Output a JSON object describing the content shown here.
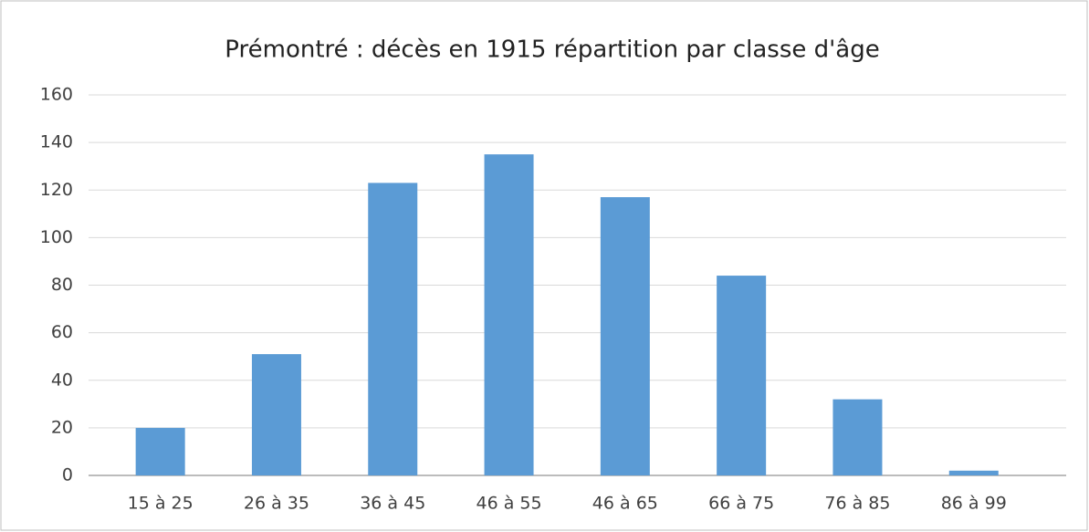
{
  "chart_data": {
    "type": "bar",
    "title": "Prémontré : décès en 1915 répartition par classe d'âge",
    "categories": [
      "15 à 25",
      "26 à 35",
      "36 à 45",
      "46 à 55",
      "46 à 65",
      "66 à 75",
      "76 à 85",
      "86 à 99"
    ],
    "values": [
      20,
      51,
      123,
      135,
      117,
      84,
      32,
      2
    ],
    "color": "#5b9bd5",
    "ylim": [
      0,
      160
    ],
    "yticks": [
      0,
      20,
      40,
      60,
      80,
      100,
      120,
      140,
      160
    ],
    "grid": true
  }
}
